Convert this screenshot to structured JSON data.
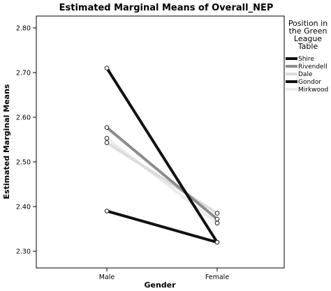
{
  "chart_data": {
    "type": "line",
    "title": "Estimated Marginal Means of Overall_NEP",
    "xlabel": "Gender",
    "ylabel": "Estimated Marginal Means",
    "categories": [
      "Male",
      "Female"
    ],
    "ylim": [
      2.3,
      2.8
    ],
    "yticks": [
      "2.30",
      "2.40",
      "2.50",
      "2.60",
      "2.70",
      "2.80"
    ],
    "legend_title_lines": [
      "Position in",
      "the Green",
      "League",
      "Table"
    ],
    "legend_position": "right",
    "grid": false,
    "series": [
      {
        "name": "Shire",
        "values": [
          2.71,
          2.32
        ],
        "color": "#111111"
      },
      {
        "name": "Rivendell",
        "values": [
          2.577,
          2.372
        ],
        "color": "#8c8c8c"
      },
      {
        "name": "Dale",
        "values": [
          2.543,
          2.385
        ],
        "color": "#dcdcdc"
      },
      {
        "name": "Gondor",
        "values": [
          2.39,
          2.32
        ],
        "color": "#111111"
      },
      {
        "name": "Mirkwood",
        "values": [
          2.553,
          2.363
        ],
        "color": "#ececec"
      }
    ]
  }
}
